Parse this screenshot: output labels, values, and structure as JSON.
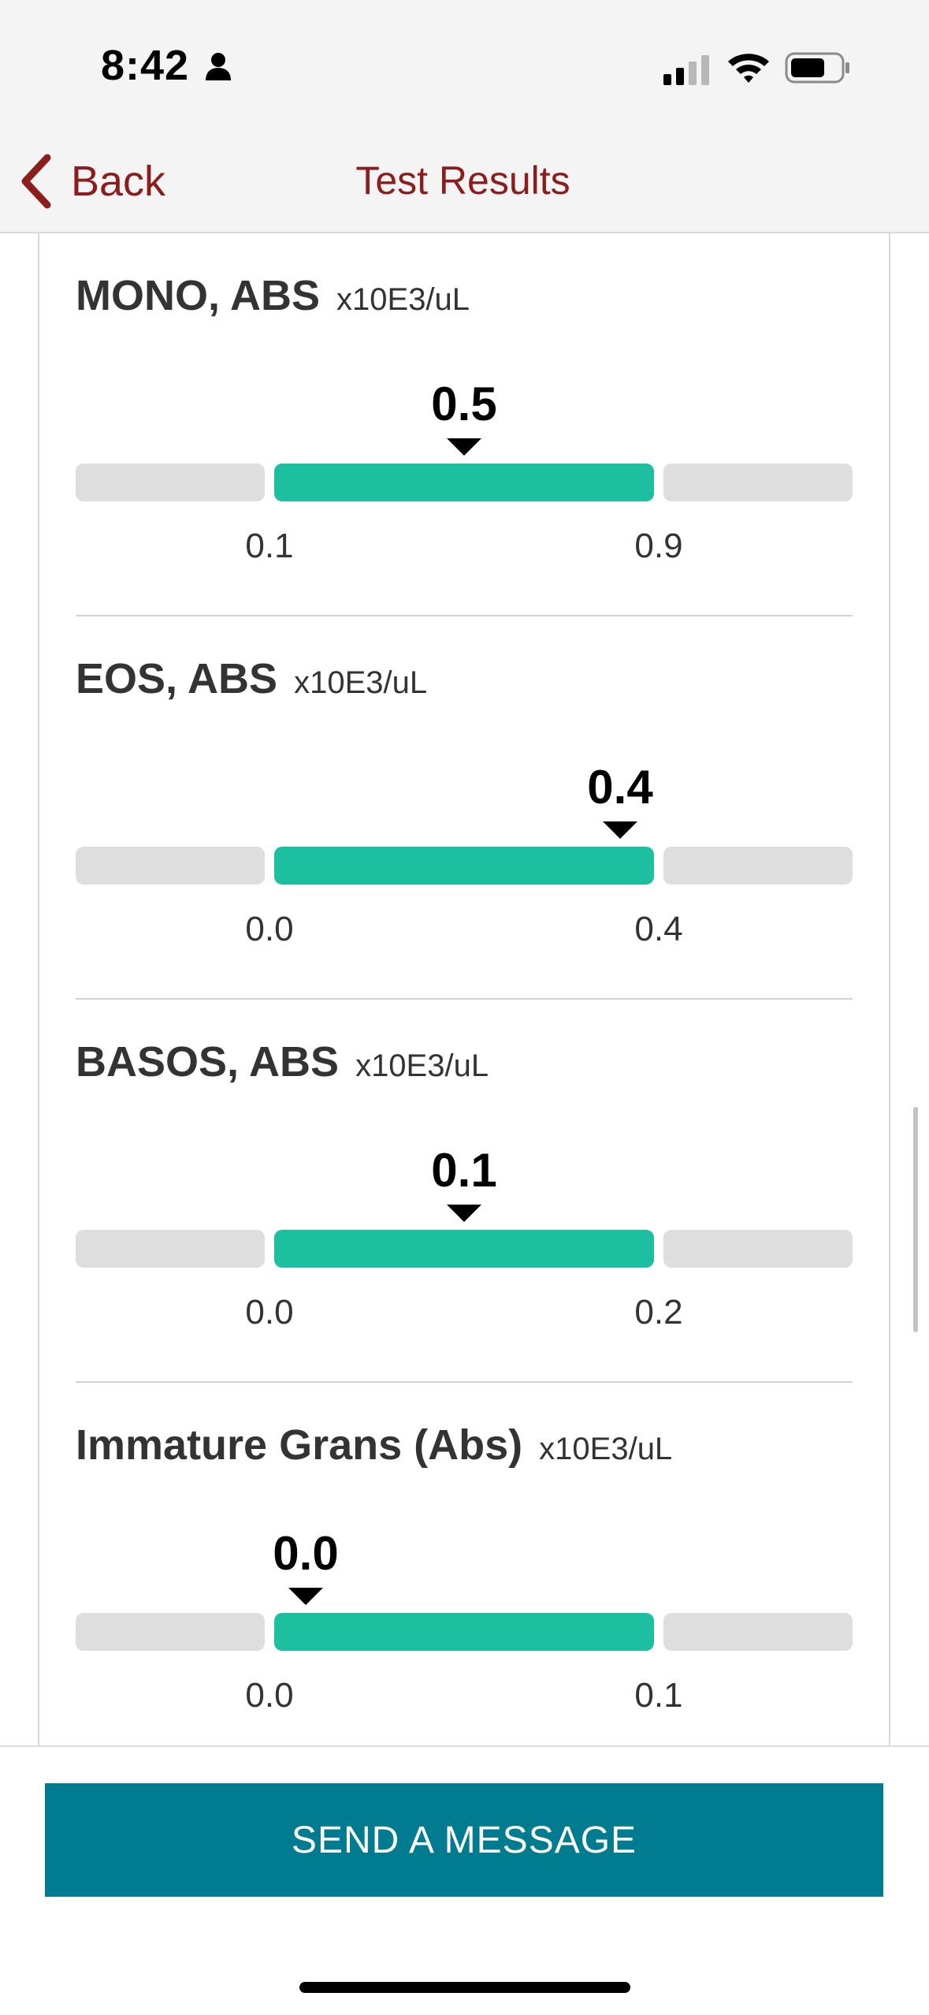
{
  "status_bar": {
    "time": "8:42"
  },
  "nav": {
    "back_label": "Back",
    "title": "Test Results",
    "accent_color": "#8c1d1d"
  },
  "results": [
    {
      "name": "MONO, ABS",
      "unit": "x10E3/uL",
      "value": "0.5",
      "low": "0.1",
      "high": "0.9",
      "value_fraction_of_normal_range": 0.5
    },
    {
      "name": "EOS, ABS",
      "unit": "x10E3/uL",
      "value": "0.4",
      "low": "0.0",
      "high": "0.4",
      "value_fraction_of_normal_range": 0.9
    },
    {
      "name": "BASOS, ABS",
      "unit": "x10E3/uL",
      "value": "0.1",
      "low": "0.0",
      "high": "0.2",
      "value_fraction_of_normal_range": 0.5
    },
    {
      "name": "Immature Grans (Abs)",
      "unit": "x10E3/uL",
      "value": "0.0",
      "low": "0.0",
      "high": "0.1",
      "value_fraction_of_normal_range": 0.05
    }
  ],
  "colors": {
    "normal_range": "#1dbfa1",
    "out_of_range": "#dedede",
    "send_button": "#007b8f"
  },
  "footer": {
    "send_button_label": "SEND A MESSAGE"
  }
}
